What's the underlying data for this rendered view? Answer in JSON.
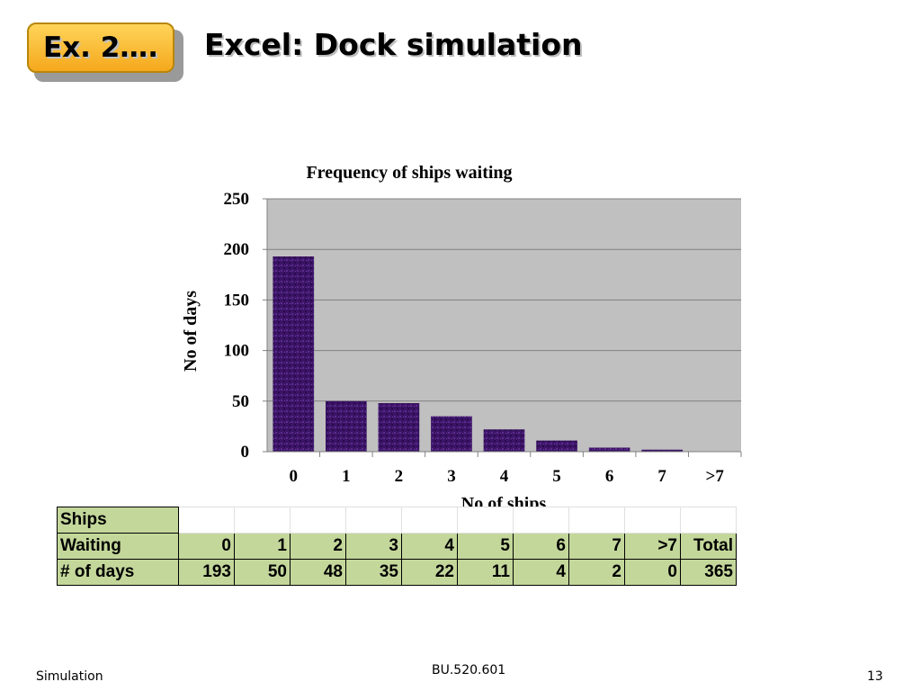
{
  "header": {
    "badge_label": "Ex. 2….",
    "title": "Excel: Dock simulation"
  },
  "chart_data": {
    "type": "bar",
    "title": "Frequency of ships waiting",
    "xlabel": "No of ships",
    "ylabel": "No of days",
    "categories": [
      "0",
      "1",
      "2",
      "3",
      "4",
      "5",
      "6",
      "7",
      ">7"
    ],
    "values": [
      193,
      50,
      48,
      35,
      22,
      11,
      4,
      2,
      0
    ],
    "ylim": [
      0,
      250
    ],
    "yticks": [
      0,
      50,
      100,
      150,
      200,
      250
    ],
    "grid": true,
    "legend": "none",
    "colors": {
      "bar": "#3b1466",
      "plot_bg": "#c0c0c0",
      "grid": "#808080"
    }
  },
  "table": {
    "row1_label": "Ships",
    "row2_label": "Waiting",
    "row3_label": "# of days",
    "ships": [
      "0",
      "1",
      "2",
      "3",
      "4",
      "5",
      "6",
      "7",
      ">7",
      "Total"
    ],
    "days": [
      "193",
      "50",
      "48",
      "35",
      "22",
      "11",
      "4",
      "2",
      "0",
      "365"
    ],
    "colors": {
      "cell": "#c4d79b"
    }
  },
  "footer": {
    "left": "Simulation",
    "center": "BU.520.601",
    "right": "13"
  }
}
